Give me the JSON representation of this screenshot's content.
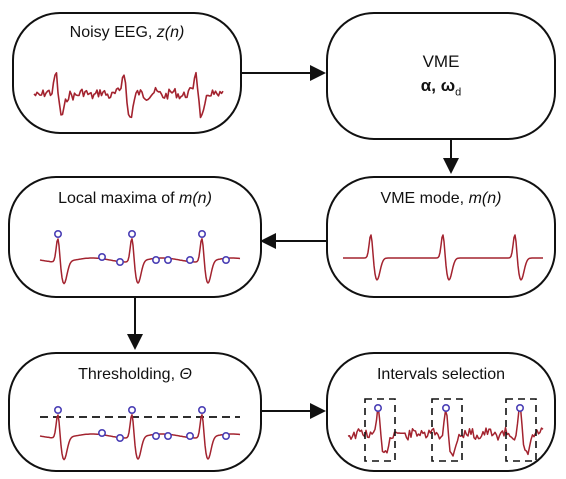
{
  "nodes": {
    "noisy_eeg": {
      "label": "Noisy EEG, ",
      "var": "z(n)"
    },
    "vme": {
      "label": "VME",
      "params_a": "α, ω",
      "params_sub": "d"
    },
    "vme_mode": {
      "label": "VME mode, ",
      "var": "m(n)"
    },
    "local_maxima": {
      "label": "Local maxima of ",
      "var": "m(n)"
    },
    "thresholding": {
      "label": "Thresholding, ",
      "var": "Θ"
    },
    "intervals": {
      "label": "Intervals selection"
    }
  },
  "colors": {
    "signal": "#a3232f",
    "marker": "#4a3fb5",
    "border": "#111111"
  }
}
